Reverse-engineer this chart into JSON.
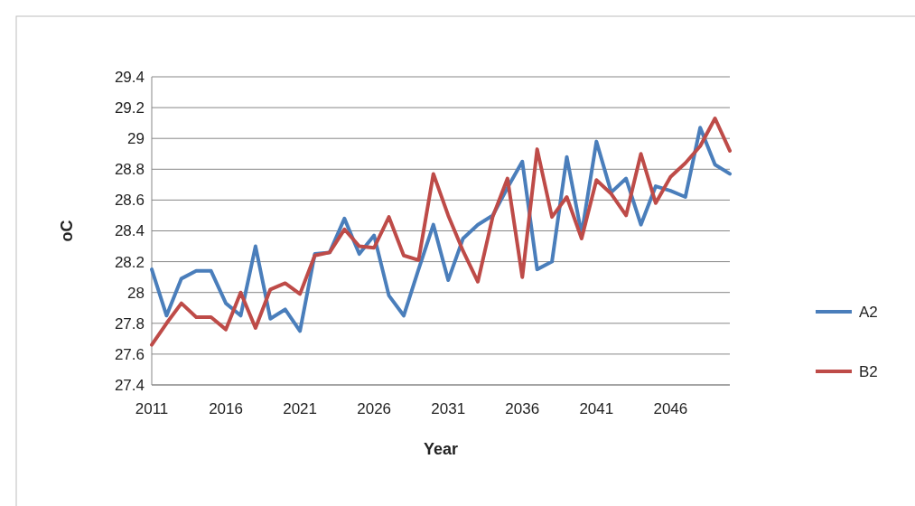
{
  "chart_data": {
    "type": "line",
    "xlabel": "Year",
    "ylabel": "oC",
    "x": [
      2011,
      2012,
      2013,
      2014,
      2015,
      2016,
      2017,
      2018,
      2019,
      2020,
      2021,
      2022,
      2023,
      2024,
      2025,
      2026,
      2027,
      2028,
      2029,
      2030,
      2031,
      2032,
      2033,
      2034,
      2035,
      2036,
      2037,
      2038,
      2039,
      2040,
      2041,
      2042,
      2043,
      2044,
      2045,
      2046,
      2047,
      2048,
      2049,
      2050
    ],
    "series": [
      {
        "name": "A2",
        "color": "#4a7ebb",
        "values": [
          28.15,
          27.85,
          28.09,
          28.14,
          28.14,
          27.93,
          27.85,
          28.3,
          27.83,
          27.89,
          27.75,
          28.25,
          28.26,
          28.48,
          28.25,
          28.37,
          27.98,
          27.85,
          28.15,
          28.44,
          28.08,
          28.35,
          28.44,
          28.5,
          28.68,
          28.85,
          28.15,
          28.2,
          28.88,
          28.38,
          28.98,
          28.65,
          28.74,
          28.44,
          28.69,
          28.66,
          28.62,
          29.07,
          28.83,
          28.77
        ]
      },
      {
        "name": "B2",
        "color": "#be4b48",
        "values": [
          27.66,
          27.8,
          27.93,
          27.84,
          27.84,
          27.76,
          28.0,
          27.77,
          28.02,
          28.06,
          27.99,
          28.24,
          28.26,
          28.41,
          28.3,
          28.29,
          28.49,
          28.24,
          28.21,
          28.77,
          28.5,
          28.27,
          28.07,
          28.49,
          28.74,
          28.1,
          28.93,
          28.49,
          28.62,
          28.35,
          28.73,
          28.64,
          28.5,
          28.9,
          28.58,
          28.75,
          28.84,
          28.95,
          29.13,
          28.92
        ]
      }
    ],
    "xlim": [
      2011,
      2050
    ],
    "xticks": [
      2011,
      2016,
      2021,
      2026,
      2031,
      2036,
      2041,
      2046
    ],
    "ylim": [
      27.4,
      29.4
    ],
    "yticks": [
      {
        "value": 27.4,
        "label": "27.4"
      },
      {
        "value": 27.6,
        "label": "27.6"
      },
      {
        "value": 27.8,
        "label": "27.8"
      },
      {
        "value": 28,
        "label": "28"
      },
      {
        "value": 28.2,
        "label": "28.2"
      },
      {
        "value": 28.4,
        "label": "28.4"
      },
      {
        "value": 28.6,
        "label": "28.6"
      },
      {
        "value": 28.8,
        "label": "28.8"
      },
      {
        "value": 29,
        "label": "29"
      },
      {
        "value": 29.2,
        "label": "29.2"
      },
      {
        "value": 29.4,
        "label": "29.4"
      }
    ],
    "grid": "y",
    "legend": "right",
    "marker": "none",
    "line_style": "solid"
  }
}
